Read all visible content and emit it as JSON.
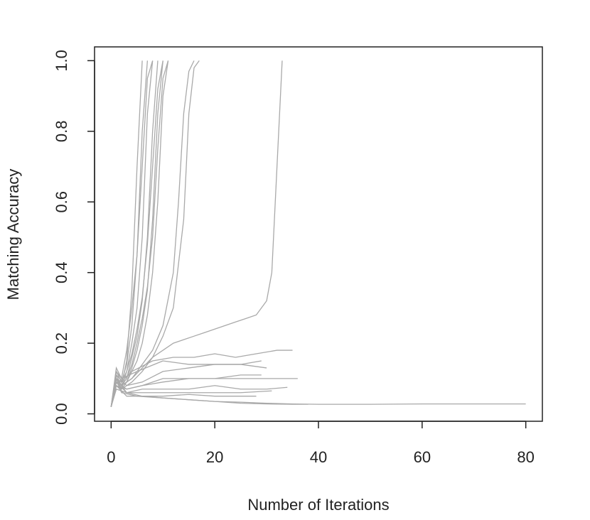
{
  "chart_data": {
    "type": "line",
    "x_label": "Number of Iterations",
    "y_label": "Matching Accuracy",
    "color": "#a9a9a9",
    "xlim": [
      -3.2,
      83.2
    ],
    "ylim": [
      -0.021,
      1.039
    ],
    "xticks": [
      0,
      20,
      40,
      60,
      80
    ],
    "yticks": [
      {
        "value": 0,
        "label": "0.0"
      },
      {
        "value": 0.2,
        "label": "0.2"
      },
      {
        "value": 0.4,
        "label": "0.4"
      },
      {
        "value": 0.6,
        "label": "0.6"
      },
      {
        "value": 0.8,
        "label": "0.8"
      },
      {
        "value": 1,
        "label": "1.0"
      }
    ],
    "series": [
      {
        "x": [
          0,
          1,
          2,
          3,
          4,
          5,
          6
        ],
        "values": [
          0.02,
          0.1,
          0.08,
          0.15,
          0.35,
          0.7,
          1.0
        ]
      },
      {
        "x": [
          0,
          1,
          2,
          3,
          4,
          5,
          6,
          7
        ],
        "values": [
          0.02,
          0.12,
          0.09,
          0.14,
          0.25,
          0.45,
          0.8,
          1.0
        ]
      },
      {
        "x": [
          0,
          1,
          2,
          3,
          4,
          5,
          6,
          7,
          8
        ],
        "values": [
          0.02,
          0.09,
          0.07,
          0.12,
          0.2,
          0.3,
          0.5,
          0.85,
          1.0
        ]
      },
      {
        "x": [
          0,
          1,
          2,
          3,
          4,
          5,
          6,
          7,
          8,
          9
        ],
        "values": [
          0.02,
          0.11,
          0.08,
          0.1,
          0.16,
          0.22,
          0.32,
          0.5,
          0.8,
          1.0
        ]
      },
      {
        "x": [
          0,
          1,
          2,
          3,
          4,
          5,
          6,
          7,
          8,
          9,
          10
        ],
        "values": [
          0.02,
          0.1,
          0.07,
          0.09,
          0.13,
          0.18,
          0.25,
          0.35,
          0.55,
          0.85,
          1.0
        ]
      },
      {
        "x": [
          0,
          1,
          2,
          3,
          4,
          5,
          6,
          7,
          8,
          9,
          10,
          11
        ],
        "values": [
          0.02,
          0.08,
          0.07,
          0.09,
          0.12,
          0.15,
          0.2,
          0.28,
          0.4,
          0.6,
          0.9,
          1.0
        ]
      },
      {
        "x": [
          0,
          1,
          2,
          3,
          4,
          5,
          6,
          7,
          8
        ],
        "values": [
          0.02,
          0.13,
          0.1,
          0.18,
          0.3,
          0.45,
          0.7,
          0.95,
          1.0
        ]
      },
      {
        "x": [
          0,
          1,
          2,
          3,
          4,
          5,
          6,
          7,
          8,
          9,
          10
        ],
        "values": [
          0.02,
          0.1,
          0.09,
          0.12,
          0.17,
          0.24,
          0.33,
          0.48,
          0.7,
          0.92,
          1.0
        ]
      },
      {
        "x": [
          0,
          1,
          2,
          3,
          4,
          5,
          6,
          7,
          8,
          9,
          10,
          11
        ],
        "values": [
          0.02,
          0.09,
          0.08,
          0.1,
          0.14,
          0.2,
          0.27,
          0.36,
          0.5,
          0.75,
          0.95,
          1.0
        ]
      },
      {
        "x": [
          0,
          1,
          2,
          4,
          6,
          8,
          10,
          12,
          13,
          14,
          15,
          16
        ],
        "values": [
          0.02,
          0.1,
          0.08,
          0.1,
          0.14,
          0.18,
          0.25,
          0.4,
          0.6,
          0.85,
          0.97,
          1.0
        ]
      },
      {
        "x": [
          0,
          1,
          2,
          4,
          6,
          8,
          10,
          12,
          14,
          15,
          16,
          17
        ],
        "values": [
          0.02,
          0.09,
          0.07,
          0.09,
          0.12,
          0.16,
          0.22,
          0.3,
          0.55,
          0.85,
          0.98,
          1.0
        ]
      },
      {
        "x": [
          0,
          1,
          2,
          4,
          6,
          8,
          10,
          12,
          14,
          16,
          18,
          20,
          22,
          24,
          26,
          28,
          30,
          31,
          32,
          33
        ],
        "values": [
          0.02,
          0.1,
          0.08,
          0.1,
          0.13,
          0.16,
          0.18,
          0.2,
          0.21,
          0.22,
          0.23,
          0.24,
          0.25,
          0.26,
          0.27,
          0.28,
          0.32,
          0.4,
          0.7,
          1.0
        ]
      },
      {
        "x": [
          0,
          1,
          2,
          4,
          8,
          12,
          16,
          20,
          24,
          28,
          32,
          35
        ],
        "values": [
          0.02,
          0.1,
          0.09,
          0.12,
          0.15,
          0.16,
          0.16,
          0.17,
          0.16,
          0.17,
          0.18,
          0.18
        ]
      },
      {
        "x": [
          0,
          1,
          2,
          5,
          10,
          15,
          20,
          25,
          30
        ],
        "values": [
          0.02,
          0.12,
          0.1,
          0.12,
          0.15,
          0.14,
          0.14,
          0.14,
          0.13
        ]
      },
      {
        "x": [
          0,
          1,
          3,
          6,
          10,
          15,
          20,
          25,
          29
        ],
        "values": [
          0.02,
          0.11,
          0.08,
          0.09,
          0.12,
          0.13,
          0.14,
          0.14,
          0.15
        ]
      },
      {
        "x": [
          0,
          1,
          3,
          6,
          10,
          15,
          20,
          25,
          30,
          36
        ],
        "values": [
          0.02,
          0.09,
          0.07,
          0.08,
          0.09,
          0.1,
          0.1,
          0.1,
          0.1,
          0.1
        ]
      },
      {
        "x": [
          0,
          1,
          3,
          6,
          10,
          15,
          20,
          25,
          29
        ],
        "values": [
          0.02,
          0.08,
          0.07,
          0.08,
          0.1,
          0.1,
          0.1,
          0.11,
          0.11
        ]
      },
      {
        "x": [
          0,
          1,
          3,
          6,
          10,
          15,
          20,
          25,
          30,
          34
        ],
        "values": [
          0.02,
          0.1,
          0.06,
          0.07,
          0.07,
          0.07,
          0.08,
          0.07,
          0.07,
          0.075
        ]
      },
      {
        "x": [
          0,
          1,
          3,
          6,
          10,
          15,
          20,
          25,
          31
        ],
        "values": [
          0.02,
          0.07,
          0.06,
          0.06,
          0.06,
          0.06,
          0.06,
          0.06,
          0.065
        ]
      },
      {
        "x": [
          0,
          1,
          3,
          6,
          10,
          15,
          20,
          25,
          28
        ],
        "values": [
          0.02,
          0.09,
          0.06,
          0.05,
          0.05,
          0.055,
          0.05,
          0.05,
          0.05
        ]
      },
      {
        "x": [
          0,
          1,
          2,
          5,
          10,
          15,
          20,
          25,
          30,
          35,
          40,
          50,
          60,
          70,
          80
        ],
        "values": [
          0.02,
          0.1,
          0.06,
          0.05,
          0.045,
          0.04,
          0.035,
          0.033,
          0.03,
          0.028,
          0.027,
          0.027,
          0.028,
          0.028,
          0.028
        ]
      },
      {
        "x": [
          0,
          1,
          3,
          6,
          10,
          15,
          20,
          25,
          30,
          35,
          38
        ],
        "values": [
          0.02,
          0.08,
          0.05,
          0.05,
          0.045,
          0.04,
          0.035,
          0.03,
          0.028,
          0.027,
          0.027
        ]
      }
    ]
  }
}
